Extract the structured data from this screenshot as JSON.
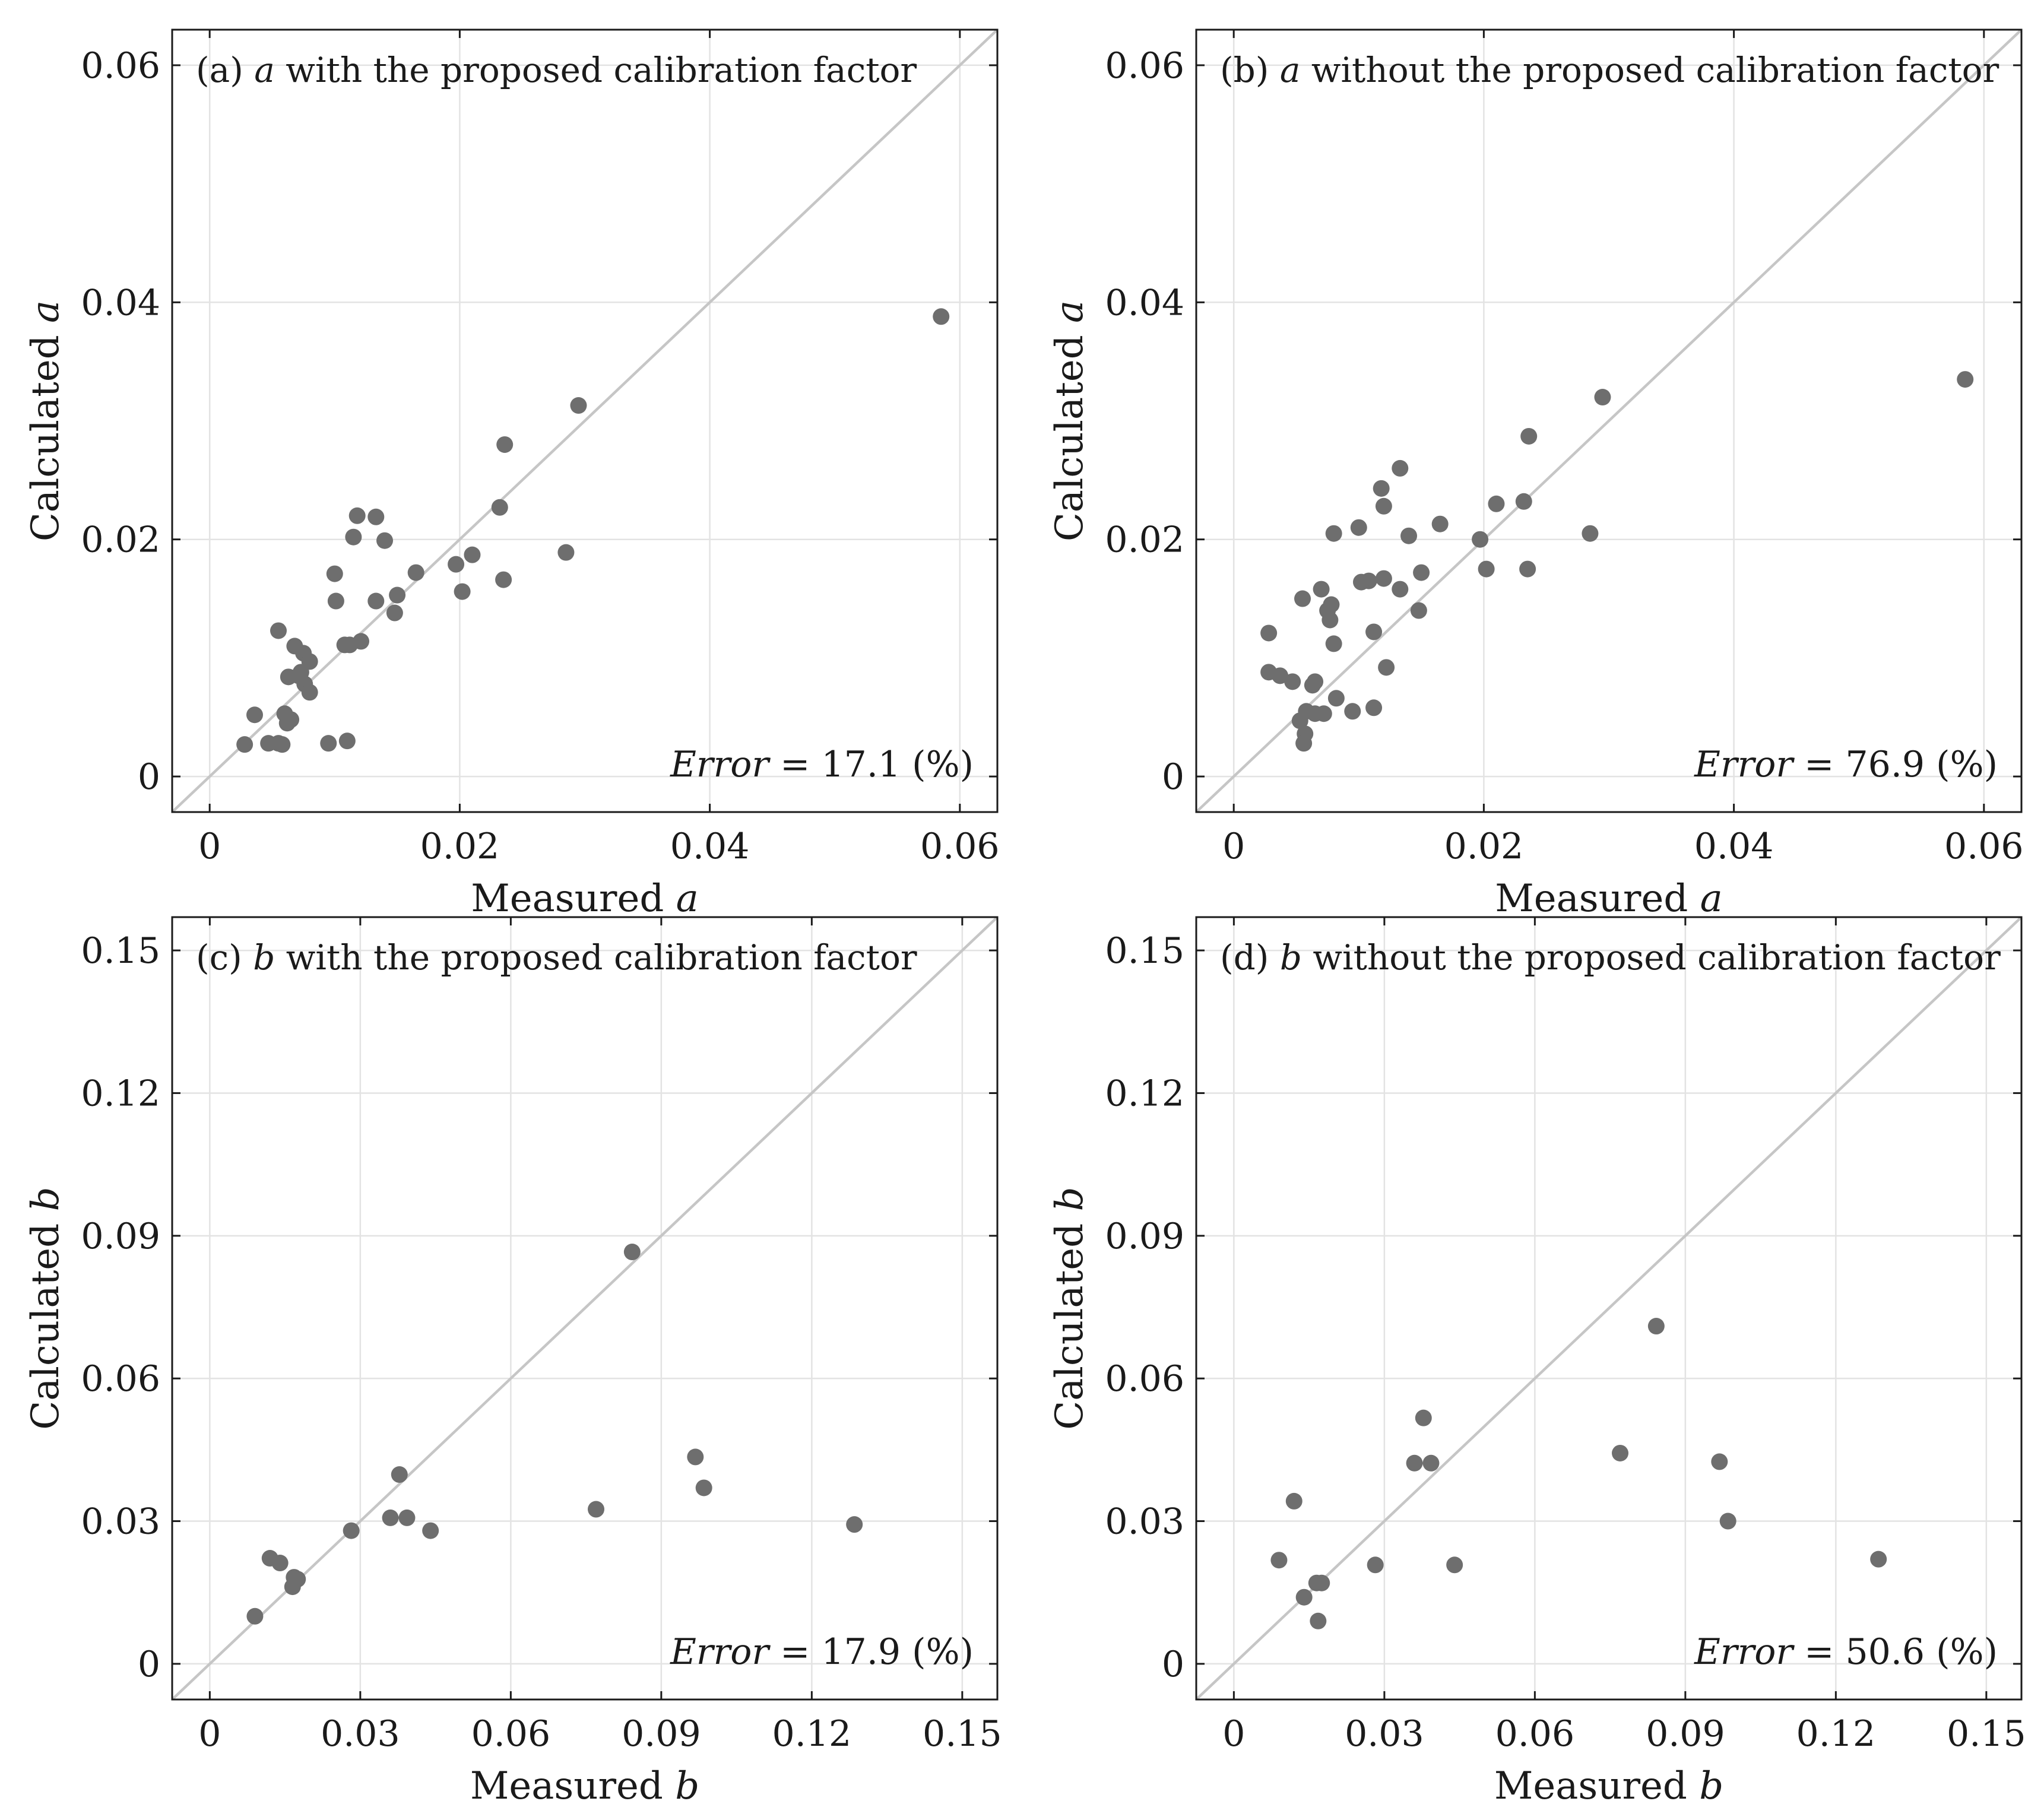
{
  "chart_data": [
    {
      "type": "scatter",
      "panel": "a",
      "title": "(a) a with the proposed calibration factor",
      "title_parts": [
        "(a) ",
        "a",
        " with the proposed calibration factor"
      ],
      "xlabel_parts": [
        "Measured ",
        "a"
      ],
      "ylabel_parts": [
        "Calculated ",
        "a"
      ],
      "xlim": [
        -0.003,
        0.063
      ],
      "ylim": [
        -0.003,
        0.063
      ],
      "xticks": [
        0,
        0.02,
        0.04,
        0.06
      ],
      "yticks": [
        0,
        0.02,
        0.04,
        0.06
      ],
      "xtick_labels": [
        "0",
        "0.02",
        "0.04",
        "0.06"
      ],
      "ytick_labels": [
        "0",
        "0.02",
        "0.04",
        "0.06"
      ],
      "grid": true,
      "reference_line": "y = x",
      "error_label": {
        "italic": "Error",
        "rest": " = 17.1 (%)"
      },
      "points": [
        [
          0.0585,
          0.0388
        ],
        [
          0.0295,
          0.0313
        ],
        [
          0.0236,
          0.028
        ],
        [
          0.0232,
          0.0227
        ],
        [
          0.0235,
          0.0166
        ],
        [
          0.0285,
          0.0189
        ],
        [
          0.021,
          0.0187
        ],
        [
          0.0197,
          0.0179
        ],
        [
          0.0202,
          0.0156
        ],
        [
          0.0165,
          0.0172
        ],
        [
          0.0148,
          0.0138
        ],
        [
          0.015,
          0.0153
        ],
        [
          0.0133,
          0.0148
        ],
        [
          0.0118,
          0.022
        ],
        [
          0.0133,
          0.0219
        ],
        [
          0.0115,
          0.0202
        ],
        [
          0.014,
          0.0199
        ],
        [
          0.01,
          0.0171
        ],
        [
          0.0101,
          0.0148
        ],
        [
          0.0108,
          0.0111
        ],
        [
          0.0112,
          0.0111
        ],
        [
          0.0121,
          0.0114
        ],
        [
          0.011,
          0.003
        ],
        [
          0.0095,
          0.0028
        ],
        [
          0.0055,
          0.0123
        ],
        [
          0.0068,
          0.011
        ],
        [
          0.0075,
          0.0104
        ],
        [
          0.008,
          0.0097
        ],
        [
          0.0073,
          0.0088
        ],
        [
          0.0063,
          0.0084
        ],
        [
          0.0071,
          0.0085
        ],
        [
          0.0076,
          0.0078
        ],
        [
          0.008,
          0.0071
        ],
        [
          0.006,
          0.0053
        ],
        [
          0.0065,
          0.0048
        ],
        [
          0.0062,
          0.0045
        ],
        [
          0.0036,
          0.0052
        ],
        [
          0.0047,
          0.0028
        ],
        [
          0.0055,
          0.0028
        ],
        [
          0.0058,
          0.0027
        ],
        [
          0.0028,
          0.0027
        ]
      ]
    },
    {
      "type": "scatter",
      "panel": "b",
      "title": "(b) a without the proposed calibration factor",
      "title_parts": [
        "(b) ",
        "a",
        " without the proposed calibration factor"
      ],
      "xlabel_parts": [
        "Measured ",
        "a"
      ],
      "ylabel_parts": [
        "Calculated ",
        "a"
      ],
      "xlim": [
        -0.003,
        0.063
      ],
      "ylim": [
        -0.003,
        0.063
      ],
      "xticks": [
        0,
        0.02,
        0.04,
        0.06
      ],
      "yticks": [
        0,
        0.02,
        0.04,
        0.06
      ],
      "xtick_labels": [
        "0",
        "0.02",
        "0.04",
        "0.06"
      ],
      "ytick_labels": [
        "0",
        "0.02",
        "0.04",
        "0.06"
      ],
      "grid": true,
      "reference_line": "y = x",
      "error_label": {
        "italic": "Error",
        "rest": " = 76.9 (%)"
      },
      "points": [
        [
          0.0585,
          0.0335
        ],
        [
          0.0295,
          0.032
        ],
        [
          0.0236,
          0.0287
        ],
        [
          0.0232,
          0.0232
        ],
        [
          0.0235,
          0.0175
        ],
        [
          0.0285,
          0.0205
        ],
        [
          0.021,
          0.023
        ],
        [
          0.0197,
          0.02
        ],
        [
          0.0202,
          0.0175
        ],
        [
          0.0165,
          0.0213
        ],
        [
          0.0148,
          0.014
        ],
        [
          0.015,
          0.0172
        ],
        [
          0.0133,
          0.026
        ],
        [
          0.0118,
          0.0243
        ],
        [
          0.012,
          0.0228
        ],
        [
          0.014,
          0.0203
        ],
        [
          0.01,
          0.021
        ],
        [
          0.0133,
          0.0158
        ],
        [
          0.012,
          0.0167
        ],
        [
          0.0108,
          0.0165
        ],
        [
          0.0102,
          0.0164
        ],
        [
          0.0112,
          0.0122
        ],
        [
          0.0122,
          0.0092
        ],
        [
          0.0112,
          0.0058
        ],
        [
          0.0095,
          0.0055
        ],
        [
          0.008,
          0.0205
        ],
        [
          0.0078,
          0.0145
        ],
        [
          0.0075,
          0.014
        ],
        [
          0.0077,
          0.0132
        ],
        [
          0.008,
          0.0112
        ],
        [
          0.007,
          0.0158
        ],
        [
          0.0055,
          0.015
        ],
        [
          0.0028,
          0.0121
        ],
        [
          0.0028,
          0.0088
        ],
        [
          0.0037,
          0.0085
        ],
        [
          0.0047,
          0.008
        ],
        [
          0.0065,
          0.008
        ],
        [
          0.0063,
          0.0077
        ],
        [
          0.0082,
          0.0066
        ],
        [
          0.0058,
          0.0055
        ],
        [
          0.0065,
          0.0053
        ],
        [
          0.0072,
          0.0053
        ],
        [
          0.0053,
          0.0047
        ],
        [
          0.0057,
          0.0036
        ],
        [
          0.0056,
          0.0028
        ]
      ]
    },
    {
      "type": "scatter",
      "panel": "c",
      "title": "(c) b with the proposed calibration factor",
      "title_parts": [
        "(c) ",
        "b",
        " with the proposed calibration factor"
      ],
      "xlabel_parts": [
        "Measured ",
        "b"
      ],
      "ylabel_parts": [
        "Calculated ",
        "b"
      ],
      "xlim": [
        -0.0075,
        0.157
      ],
      "ylim": [
        -0.0075,
        0.157
      ],
      "xticks": [
        0,
        0.03,
        0.06,
        0.09,
        0.12,
        0.15
      ],
      "yticks": [
        0,
        0.03,
        0.06,
        0.09,
        0.12,
        0.15
      ],
      "xtick_labels": [
        "0",
        "0.03",
        "0.06",
        "0.09",
        "0.12",
        "0.15"
      ],
      "ytick_labels": [
        "0",
        "0.03",
        "0.06",
        "0.09",
        "0.12",
        "0.15"
      ],
      "grid": true,
      "reference_line": "y = x",
      "error_label": {
        "italic": "Error",
        "rest": " = 17.9 (%)"
      },
      "points": [
        [
          0.0842,
          0.0866
        ],
        [
          0.0968,
          0.0435
        ],
        [
          0.0985,
          0.037
        ],
        [
          0.1285,
          0.0293
        ],
        [
          0.077,
          0.0325
        ],
        [
          0.0378,
          0.0398
        ],
        [
          0.036,
          0.0307
        ],
        [
          0.0393,
          0.0307
        ],
        [
          0.044,
          0.028
        ],
        [
          0.0282,
          0.028
        ],
        [
          0.012,
          0.0222
        ],
        [
          0.014,
          0.0212
        ],
        [
          0.0168,
          0.0182
        ],
        [
          0.0175,
          0.0178
        ],
        [
          0.0165,
          0.0162
        ],
        [
          0.009,
          0.01
        ]
      ]
    },
    {
      "type": "scatter",
      "panel": "d",
      "title": "(d) b without the proposed calibration factor",
      "title_parts": [
        "(d) ",
        "b",
        " without the proposed calibration factor"
      ],
      "xlabel_parts": [
        "Measured ",
        "b"
      ],
      "ylabel_parts": [
        "Calculated ",
        "b"
      ],
      "xlim": [
        -0.0075,
        0.157
      ],
      "ylim": [
        -0.0075,
        0.157
      ],
      "xticks": [
        0,
        0.03,
        0.06,
        0.09,
        0.12,
        0.15
      ],
      "yticks": [
        0,
        0.03,
        0.06,
        0.09,
        0.12,
        0.15
      ],
      "xtick_labels": [
        "0",
        "0.03",
        "0.06",
        "0.09",
        "0.12",
        "0.15"
      ],
      "ytick_labels": [
        "0",
        "0.03",
        "0.06",
        "0.09",
        "0.12",
        "0.15"
      ],
      "grid": true,
      "reference_line": "y = x",
      "error_label": {
        "italic": "Error",
        "rest": " = 50.6 (%)"
      },
      "points": [
        [
          0.0842,
          0.071
        ],
        [
          0.0378,
          0.0517
        ],
        [
          0.036,
          0.0422
        ],
        [
          0.0393,
          0.0422
        ],
        [
          0.077,
          0.0443
        ],
        [
          0.0968,
          0.0425
        ],
        [
          0.0985,
          0.03
        ],
        [
          0.1285,
          0.022
        ],
        [
          0.012,
          0.0342
        ],
        [
          0.009,
          0.0218
        ],
        [
          0.0282,
          0.0208
        ],
        [
          0.044,
          0.0208
        ],
        [
          0.0165,
          0.017
        ],
        [
          0.0175,
          0.017
        ],
        [
          0.014,
          0.014
        ],
        [
          0.0168,
          0.009
        ]
      ]
    }
  ]
}
